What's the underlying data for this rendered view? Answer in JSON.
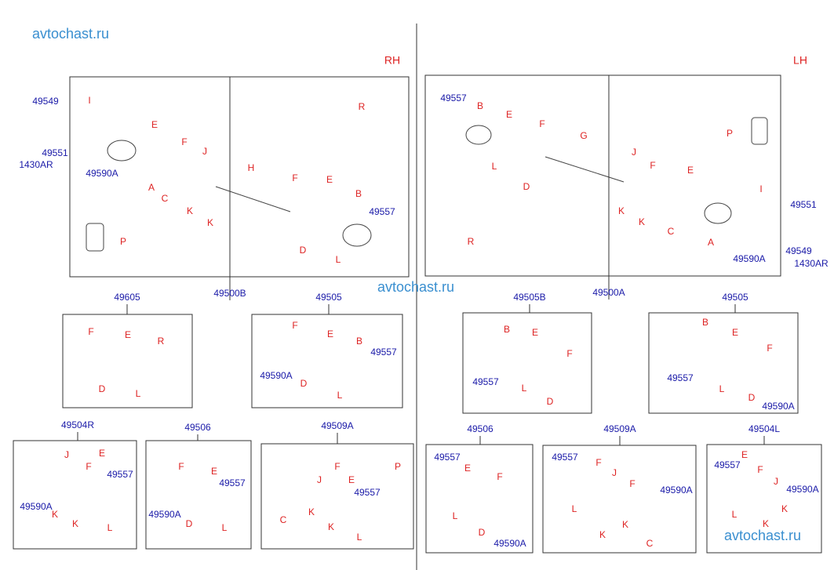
{
  "watermarks": [
    "avtochast.ru",
    "avtochast.ru",
    "avtochast.ru"
  ],
  "sides": [
    "RH",
    "LH"
  ],
  "panels": [
    {
      "code": "49500B",
      "labels": [
        "49549",
        "49551",
        "1430AR",
        "I",
        "49590A",
        "E",
        "F",
        "J",
        "A",
        "C",
        "K",
        "K",
        "H",
        "F",
        "E",
        "B",
        "49557",
        "D",
        "L",
        "R",
        "P"
      ]
    },
    {
      "code": "49500A",
      "labels": [
        "49557",
        "B",
        "E",
        "F",
        "G",
        "L",
        "D",
        "R",
        "J",
        "F",
        "E",
        "K",
        "K",
        "C",
        "I",
        "A",
        "49590A",
        "P",
        "49551",
        "49549",
        "1430AR"
      ]
    },
    {
      "code": "49605",
      "labels": [
        "F",
        "E",
        "R",
        "D",
        "L"
      ]
    },
    {
      "code": "49505",
      "labels": [
        "F",
        "E",
        "B",
        "49557",
        "49590A",
        "D",
        "L"
      ]
    },
    {
      "code": "49505B",
      "labels": [
        "B",
        "E",
        "F",
        "49557",
        "L",
        "D"
      ]
    },
    {
      "code": "49505",
      "labels": [
        "B",
        "E",
        "F",
        "49557",
        "L",
        "D",
        "49590A"
      ]
    },
    {
      "code": "49504R",
      "labels": [
        "J",
        "E",
        "F",
        "49557",
        "49590A",
        "K",
        "K",
        "L"
      ]
    },
    {
      "code": "49506",
      "labels": [
        "F",
        "E",
        "49557",
        "49590A",
        "D",
        "L"
      ]
    },
    {
      "code": "49509A",
      "labels": [
        "P",
        "J",
        "F",
        "E",
        "49557",
        "C",
        "K",
        "K",
        "L"
      ]
    },
    {
      "code": "49506",
      "labels": [
        "49557",
        "E",
        "F",
        "L",
        "D",
        "49590A"
      ]
    },
    {
      "code": "49509A",
      "labels": [
        "49557",
        "F",
        "J",
        "F",
        "49590A",
        "L",
        "K",
        "K",
        "C"
      ]
    },
    {
      "code": "49504L",
      "labels": [
        "E",
        "49557",
        "F",
        "J",
        "49590A",
        "L",
        "K",
        "K"
      ]
    }
  ]
}
